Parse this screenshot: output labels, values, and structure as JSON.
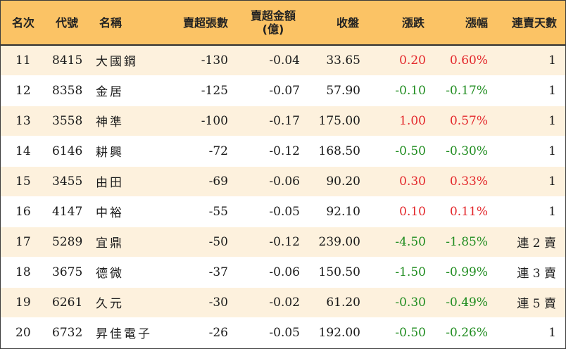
{
  "headers": {
    "rank": "名次",
    "code": "代號",
    "name": "名稱",
    "volume": "賣超張數",
    "amount_line1": "賣超金額",
    "amount_line2": "(億)",
    "close": "收盤",
    "change": "漲跌",
    "pct": "漲幅",
    "days": "連賣天數"
  },
  "colors": {
    "header_bg": "#fbc365",
    "row_alt_bg": "#fdf1dd",
    "up": "#e3262a",
    "down": "#1f8c1f"
  },
  "rows": [
    {
      "rank": "11",
      "code": "8415",
      "name": "大國鋼",
      "volume": "-130",
      "amount": "-0.04",
      "close": "33.65",
      "change": "0.20",
      "pct": "0.60%",
      "days": "1",
      "dir": "up"
    },
    {
      "rank": "12",
      "code": "8358",
      "name": "金居",
      "volume": "-125",
      "amount": "-0.07",
      "close": "57.90",
      "change": "-0.10",
      "pct": "-0.17%",
      "days": "1",
      "dir": "down"
    },
    {
      "rank": "13",
      "code": "3558",
      "name": "神準",
      "volume": "-100",
      "amount": "-0.17",
      "close": "175.00",
      "change": "1.00",
      "pct": "0.57%",
      "days": "1",
      "dir": "up"
    },
    {
      "rank": "14",
      "code": "6146",
      "name": "耕興",
      "volume": "-72",
      "amount": "-0.12",
      "close": "168.50",
      "change": "-0.50",
      "pct": "-0.30%",
      "days": "1",
      "dir": "down"
    },
    {
      "rank": "15",
      "code": "3455",
      "name": "由田",
      "volume": "-69",
      "amount": "-0.06",
      "close": "90.20",
      "change": "0.30",
      "pct": "0.33%",
      "days": "1",
      "dir": "up"
    },
    {
      "rank": "16",
      "code": "4147",
      "name": "中裕",
      "volume": "-55",
      "amount": "-0.05",
      "close": "92.10",
      "change": "0.10",
      "pct": "0.11%",
      "days": "1",
      "dir": "up"
    },
    {
      "rank": "17",
      "code": "5289",
      "name": "宜鼎",
      "volume": "-50",
      "amount": "-0.12",
      "close": "239.00",
      "change": "-4.50",
      "pct": "-1.85%",
      "days": "連 2 賣",
      "dir": "down"
    },
    {
      "rank": "18",
      "code": "3675",
      "name": "德微",
      "volume": "-37",
      "amount": "-0.06",
      "close": "150.50",
      "change": "-1.50",
      "pct": "-0.99%",
      "days": "連 3 賣",
      "dir": "down"
    },
    {
      "rank": "19",
      "code": "6261",
      "name": "久元",
      "volume": "-30",
      "amount": "-0.02",
      "close": "61.20",
      "change": "-0.30",
      "pct": "-0.49%",
      "days": "連 5 賣",
      "dir": "down"
    },
    {
      "rank": "20",
      "code": "6732",
      "name": "昇佳電子",
      "volume": "-26",
      "amount": "-0.05",
      "close": "192.00",
      "change": "-0.50",
      "pct": "-0.26%",
      "days": "1",
      "dir": "down"
    }
  ]
}
